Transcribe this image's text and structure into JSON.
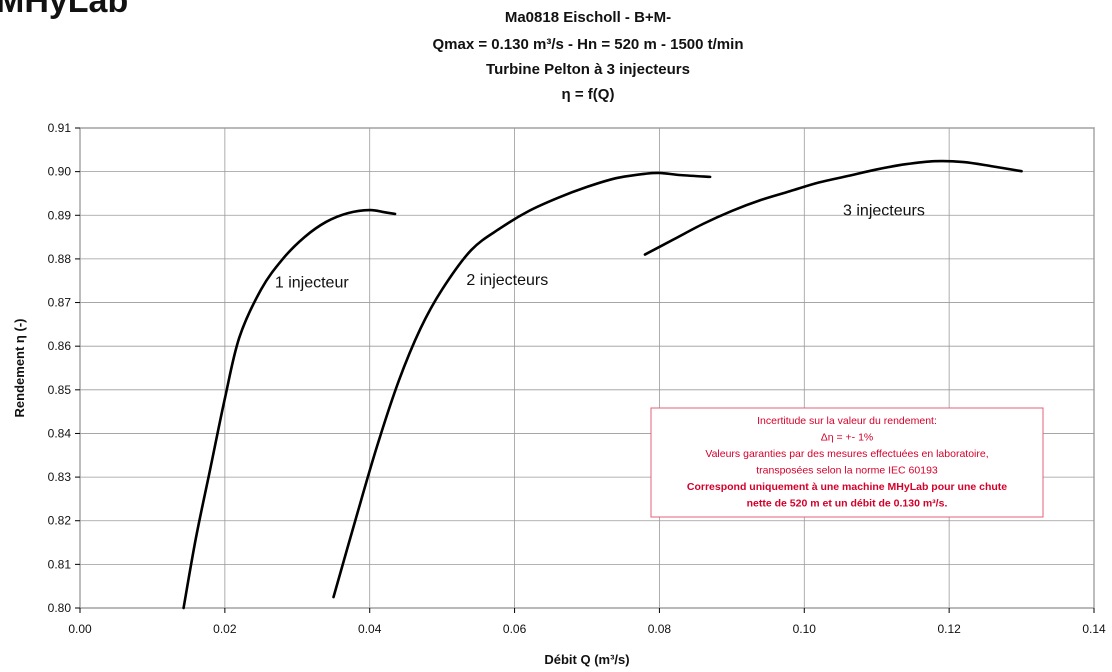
{
  "logo_text": "MHyLab",
  "colors": {
    "series": "#000000",
    "grid": "#9a9a9a",
    "note_text": "#d4002a",
    "note_border": "#e0607a"
  },
  "chart_data": {
    "type": "line",
    "title_lines": [
      "Ma0818 Eischoll - B+M-",
      "Qmax = 0.130 m³/s - Hn = 520 m - 1500 t/min",
      "Turbine Pelton à 3 injecteurs",
      "η = f(Q)"
    ],
    "xlabel": "Débit Q  (m³/s)",
    "ylabel": "Rendement η (-)",
    "xlim": [
      0,
      0.14
    ],
    "ylim": [
      0.8,
      0.91
    ],
    "x_ticks": [
      "0.00",
      "0.02",
      "0.04",
      "0.06",
      "0.08",
      "0.10",
      "0.12",
      "0.14"
    ],
    "y_ticks": [
      "0.80",
      "0.81",
      "0.82",
      "0.83",
      "0.84",
      "0.85",
      "0.86",
      "0.87",
      "0.88",
      "0.89",
      "0.90",
      "0.91"
    ],
    "grid": true,
    "series": [
      {
        "name": "1 injecteur",
        "x": [
          0.0143,
          0.016,
          0.018,
          0.02,
          0.022,
          0.025,
          0.028,
          0.031,
          0.034,
          0.037,
          0.04,
          0.042,
          0.0435
        ],
        "y": [
          0.8,
          0.816,
          0.832,
          0.848,
          0.862,
          0.873,
          0.88,
          0.885,
          0.8885,
          0.8905,
          0.8912,
          0.8907,
          0.8903
        ]
      },
      {
        "name": "2 injecteurs",
        "x": [
          0.035,
          0.038,
          0.041,
          0.044,
          0.047,
          0.05,
          0.054,
          0.058,
          0.062,
          0.066,
          0.07,
          0.074,
          0.078,
          0.08,
          0.083,
          0.087
        ],
        "y": [
          0.8025,
          0.82,
          0.837,
          0.852,
          0.864,
          0.873,
          0.882,
          0.887,
          0.891,
          0.894,
          0.8965,
          0.8985,
          0.8995,
          0.8997,
          0.8992,
          0.8988
        ]
      },
      {
        "name": "3 injecteurs",
        "x": [
          0.078,
          0.082,
          0.086,
          0.09,
          0.094,
          0.098,
          0.102,
          0.106,
          0.11,
          0.114,
          0.118,
          0.122,
          0.126,
          0.13
        ],
        "y": [
          0.881,
          0.8845,
          0.888,
          0.891,
          0.8935,
          0.8955,
          0.8975,
          0.899,
          0.9005,
          0.9017,
          0.9024,
          0.9022,
          0.9012,
          0.9001
        ]
      }
    ],
    "series_label_positions": [
      {
        "text": "1 injecteur",
        "x": 0.032,
        "y": 0.8735
      },
      {
        "text": "2 injecteurs",
        "x": 0.059,
        "y": 0.874
      },
      {
        "text": "3 injecteurs",
        "x": 0.111,
        "y": 0.89
      }
    ],
    "note_lines": [
      {
        "text": "Incertitude sur la valeur du rendement:",
        "bold": false
      },
      {
        "text": "Δη = +- 1%",
        "bold": false
      },
      {
        "text": "Valeurs garanties par des mesures effectuées en laboratoire,",
        "bold": false
      },
      {
        "text": "transposées selon la norme IEC 60193",
        "bold": false
      },
      {
        "text": "Correspond uniquement à une machine MHyLab pour une chute",
        "bold": true
      },
      {
        "text": "nette de 520 m et un débit de 0.130 m³/s.",
        "bold": true
      }
    ]
  }
}
